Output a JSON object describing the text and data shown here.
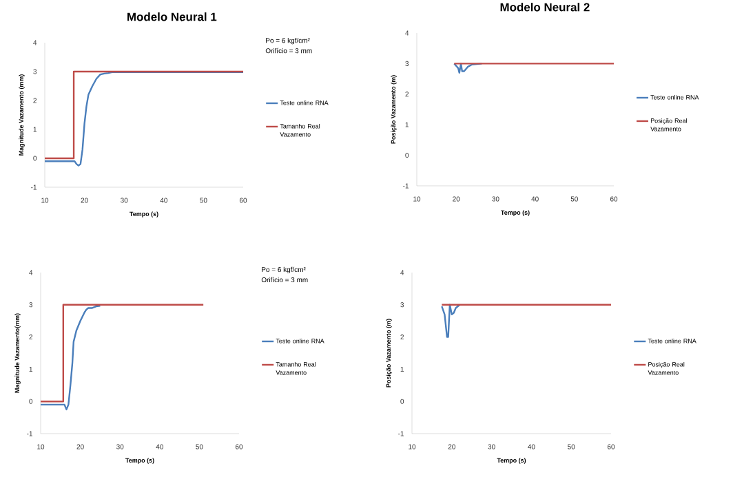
{
  "chart_data": [
    {
      "type": "line",
      "title": "Modelo Neural 1",
      "xlabel": "Tempo (s)",
      "ylabel": "Magnitude Vazamento (mm)",
      "annotations": [
        "Po = 6 kgf/cm²",
        "Orifício = 3 mm"
      ],
      "xlim": [
        10,
        60
      ],
      "ylim": [
        -1,
        4
      ],
      "xticks": [
        10,
        20,
        30,
        40,
        50,
        60
      ],
      "yticks": [
        -1,
        0,
        1,
        2,
        3,
        4
      ],
      "legend": "right",
      "series": [
        {
          "name": "Teste online RNA",
          "color": "#4a7ebb",
          "x": [
            10,
            17.5,
            18,
            18.5,
            19,
            19.5,
            20,
            20.5,
            21,
            22,
            23,
            24,
            25,
            26,
            27,
            60
          ],
          "values": [
            -0.1,
            -0.1,
            -0.2,
            -0.25,
            -0.2,
            0.3,
            1.2,
            1.8,
            2.2,
            2.5,
            2.75,
            2.9,
            2.93,
            2.95,
            2.98,
            2.98
          ]
        },
        {
          "name": "Tamanho Real Vazamento",
          "color": "#be4b48",
          "x": [
            10,
            17.3,
            17.3,
            60
          ],
          "values": [
            0,
            0,
            3,
            3
          ]
        }
      ]
    },
    {
      "type": "line",
      "title": "Modelo Neural 2",
      "xlabel": "Tempo (s)",
      "ylabel": "Posição Vazamento (m)",
      "xlim": [
        10,
        60
      ],
      "ylim": [
        -1,
        4
      ],
      "xticks": [
        10,
        20,
        30,
        40,
        50,
        60
      ],
      "yticks": [
        -1,
        0,
        1,
        2,
        3,
        4
      ],
      "legend": "right",
      "series": [
        {
          "name": "Teste online RNA",
          "color": "#4a7ebb",
          "x": [
            19.5,
            20.5,
            20.8,
            21.2,
            21.5,
            22,
            23,
            24,
            26.5
          ],
          "values": [
            3,
            2.85,
            2.7,
            3.0,
            2.75,
            2.75,
            2.9,
            2.97,
            3
          ]
        },
        {
          "name": "Posição Real Vazamento",
          "color": "#be4b48",
          "x": [
            19.5,
            60
          ],
          "values": [
            3,
            3
          ]
        }
      ]
    },
    {
      "type": "line",
      "xlabel": "Tempo (s)",
      "ylabel": "Magnitude Vazamento(mm)",
      "annotations": [
        "Po = 6 kgf/cm²",
        "Orifício = 3 mm"
      ],
      "xlim": [
        10,
        60
      ],
      "ylim": [
        -1,
        4
      ],
      "xticks": [
        10,
        20,
        30,
        40,
        50,
        60
      ],
      "yticks": [
        -1,
        0,
        1,
        2,
        3,
        4
      ],
      "legend": "right",
      "series": [
        {
          "name": "Teste online RNA",
          "color": "#4a7ebb",
          "x": [
            10,
            16,
            16.5,
            17,
            17.5,
            18,
            18.3,
            19,
            20,
            21,
            21.5,
            22,
            23,
            24,
            25
          ],
          "values": [
            -0.1,
            -0.1,
            -0.25,
            -0.1,
            0.5,
            1.2,
            1.85,
            2.2,
            2.5,
            2.75,
            2.85,
            2.9,
            2.9,
            2.95,
            2.97
          ]
        },
        {
          "name": "Tamanho Real Vazamento",
          "color": "#be4b48",
          "x": [
            10,
            15.7,
            15.7,
            51
          ],
          "values": [
            0,
            0,
            3,
            3
          ]
        }
      ]
    },
    {
      "type": "line",
      "xlabel": "Tempo (s)",
      "ylabel": "Posição Vazamento (m)",
      "xlim": [
        10,
        60
      ],
      "ylim": [
        -1,
        4
      ],
      "xticks": [
        10,
        20,
        30,
        40,
        50,
        60
      ],
      "yticks": [
        -1,
        0,
        1,
        2,
        3,
        4
      ],
      "legend": "right",
      "series": [
        {
          "name": "Teste online RNA",
          "color": "#4a7ebb",
          "x": [
            17.5,
            18.2,
            18.8,
            19.1,
            19.5,
            20,
            20.5,
            21,
            22
          ],
          "values": [
            2.95,
            2.7,
            2.0,
            2.0,
            3.0,
            2.7,
            2.75,
            2.9,
            3.0
          ]
        },
        {
          "name": "Posição Real Vazamento",
          "color": "#be4b48",
          "x": [
            17.5,
            60
          ],
          "values": [
            3,
            3
          ]
        }
      ]
    }
  ]
}
